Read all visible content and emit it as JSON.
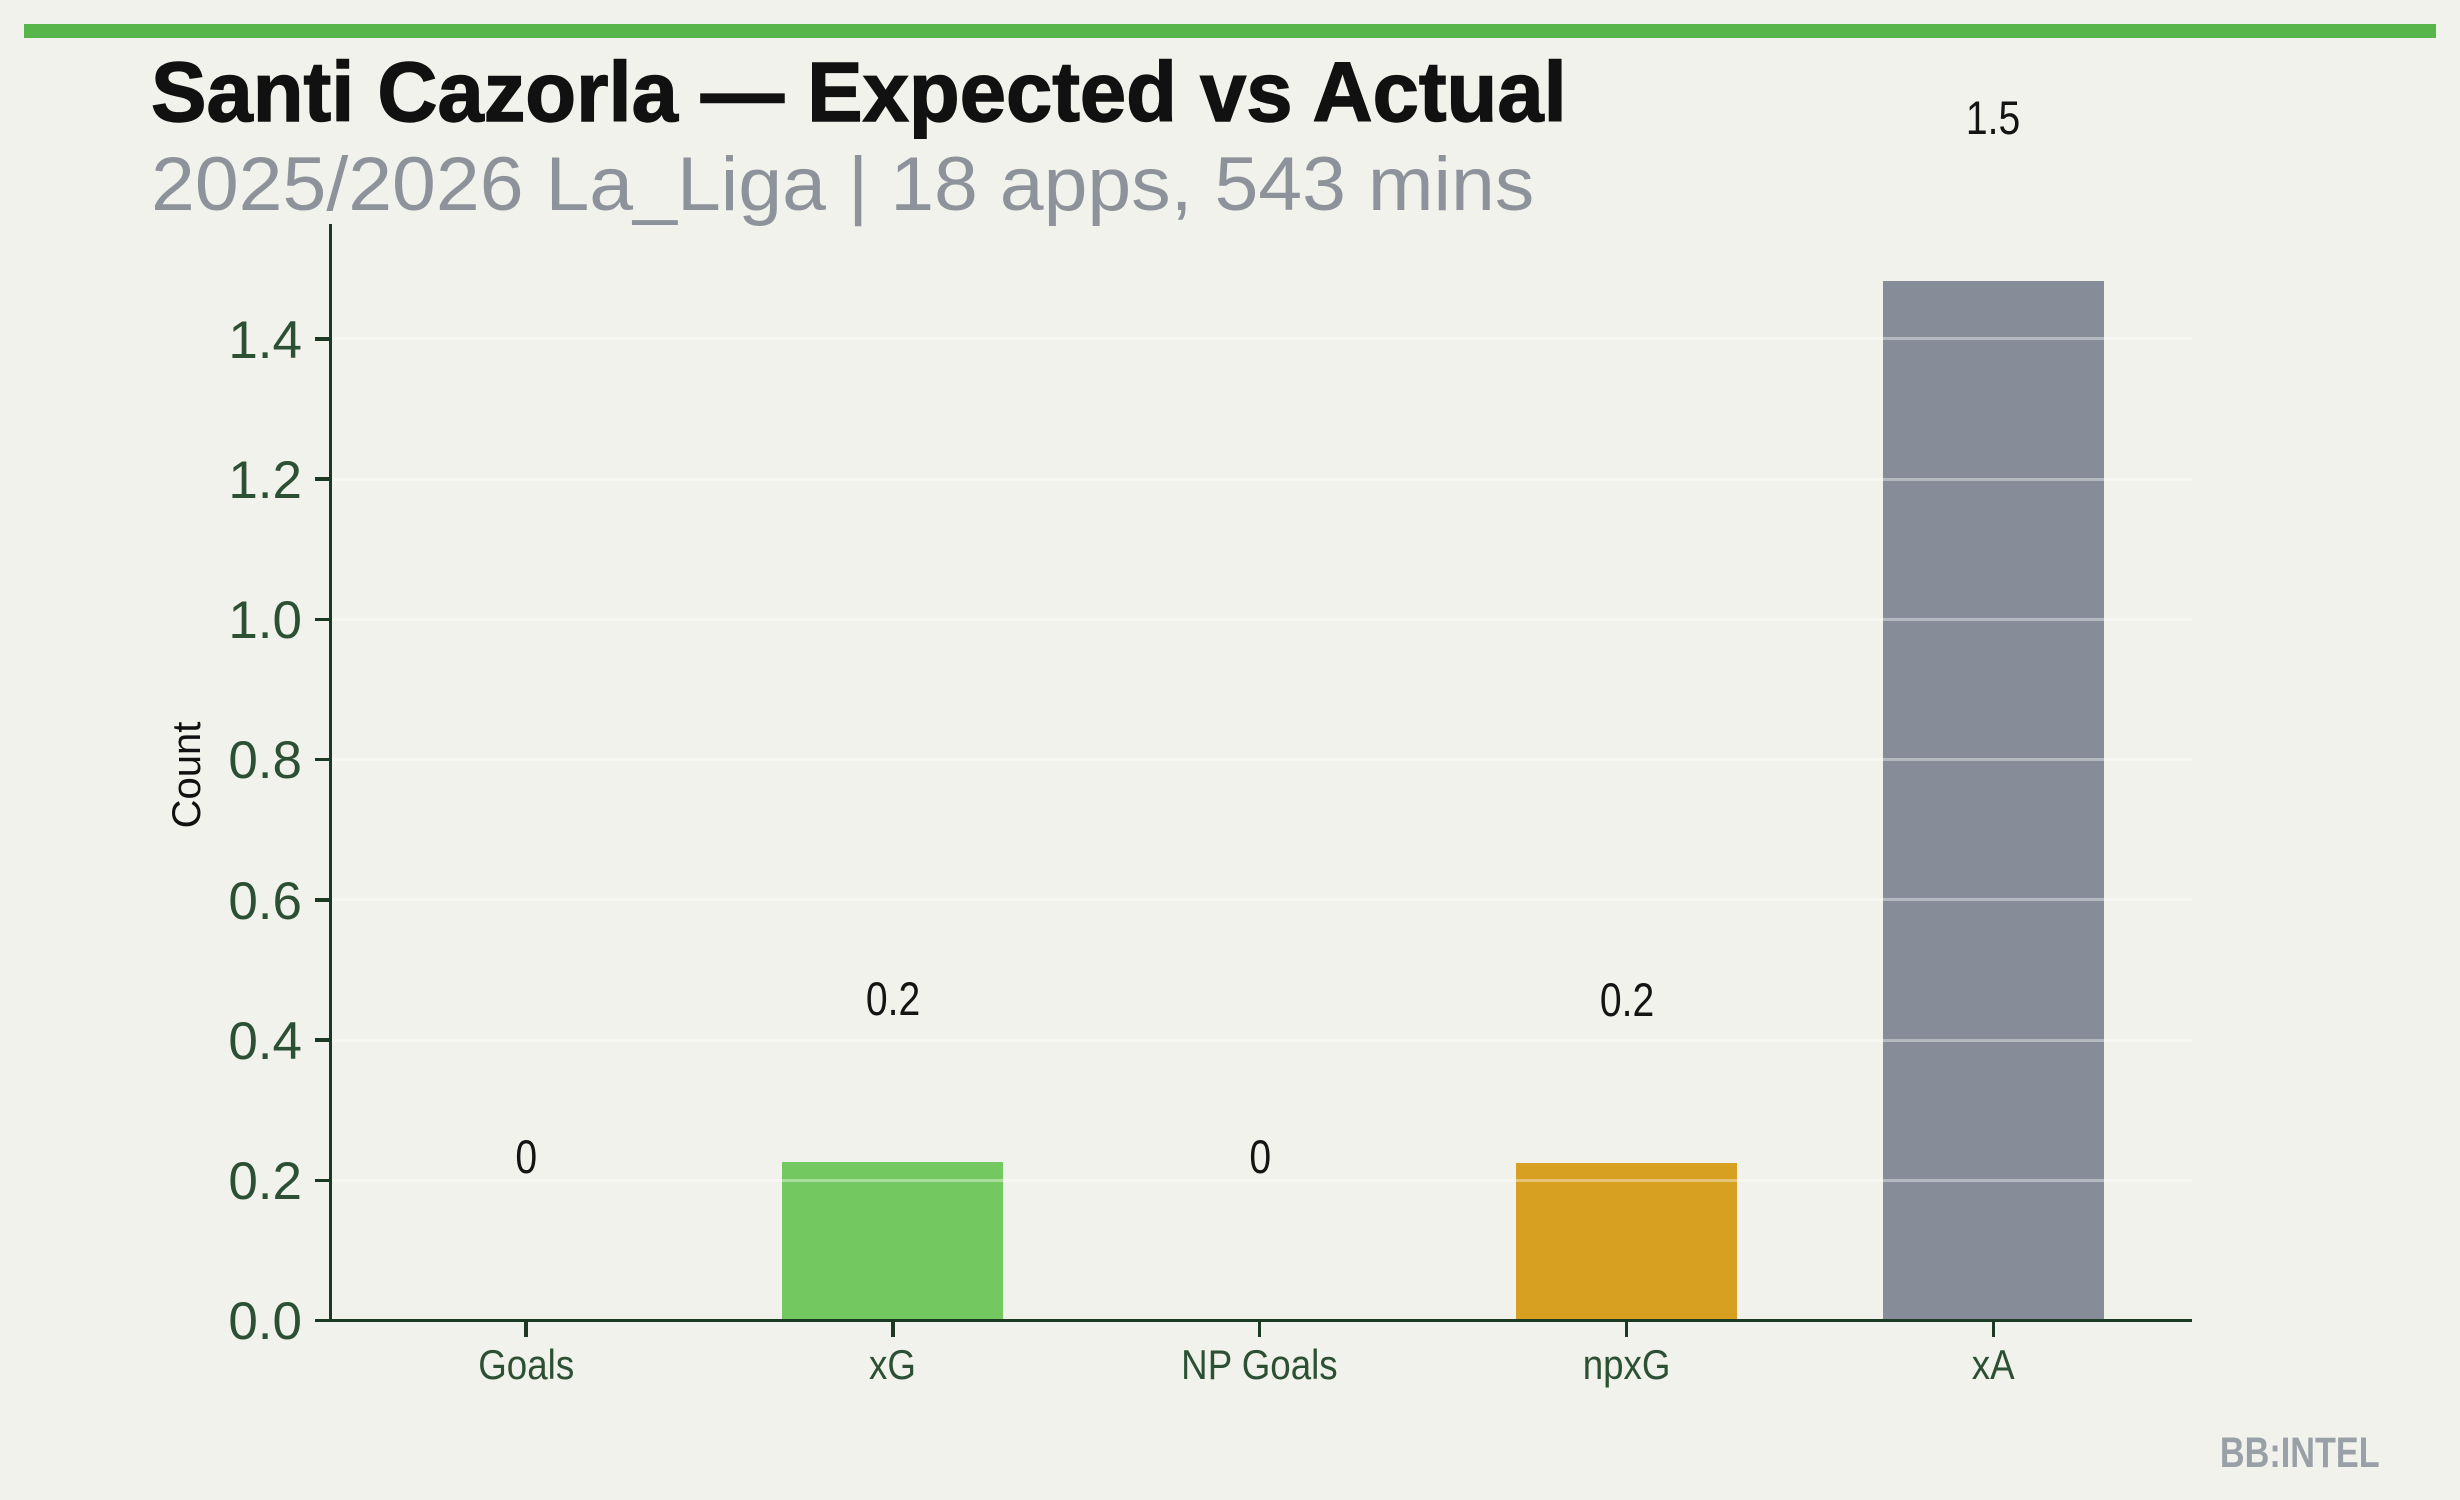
{
  "header": {
    "title": "Santi Cazorla — Expected vs Actual",
    "subtitle": "2025/2026 La_Liga | 18 apps, 543 mins"
  },
  "chart_data": {
    "type": "bar",
    "title": "Santi Cazorla — Expected vs Actual",
    "subtitle": "2025/2026 La_Liga | 18 apps, 543 mins",
    "categories": [
      "Goals",
      "xG",
      "NP Goals",
      "npxG",
      "xA"
    ],
    "values": [
      0,
      0.2,
      0,
      0.2,
      1.5
    ],
    "values_precise": [
      0,
      0.226,
      0,
      0.225,
      1.482
    ],
    "bar_labels": [
      "0",
      "0.2",
      "0",
      "0.2",
      "1.5"
    ],
    "bar_colors": [
      "#73C860",
      "#73C860",
      "#D7A021",
      "#D7A021",
      "#868D98"
    ],
    "xlabel": "",
    "ylabel": "Count",
    "ytick_labels": [
      "0.0",
      "0.2",
      "0.4",
      "0.6",
      "0.8",
      "1.0",
      "1.2",
      "1.4"
    ],
    "ytick_values": [
      0,
      0.2,
      0.4,
      0.6,
      0.8,
      1.0,
      1.2,
      1.4
    ],
    "ylim": [
      0,
      1.56
    ],
    "grid": "horizontal",
    "legend": null
  },
  "footer": {
    "watermark": "BB:INTEL"
  },
  "colors": {
    "background": "#F1F2EB",
    "accent_bar": "#57B54A",
    "axis": "#1C3A23",
    "tick_text": "#2C5033",
    "title_text": "#111111",
    "subtitle_text": "#8E939B",
    "value_label_text": "#141414",
    "watermark_text": "#9AA0A7",
    "bar_green": "#73C860",
    "bar_gold": "#D7A021",
    "bar_gray": "#868D98",
    "gridline": "rgba(255,255,255,0.38)"
  }
}
